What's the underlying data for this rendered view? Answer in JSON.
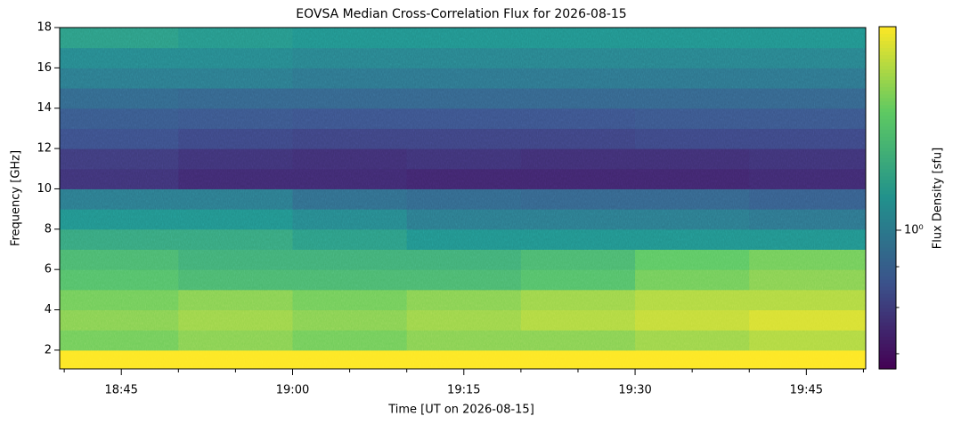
{
  "chart_data": {
    "type": "heatmap",
    "title": "EOVSA Median Cross-Correlation Flux for 2026-08-15",
    "xlabel": "Time [UT on 2026-08-15]",
    "ylabel": "Frequency [GHz]",
    "colorbar_label": "Flux Density [sfu]",
    "colormap": "viridis",
    "clog": true,
    "clim": [
      0.67,
      1.8
    ],
    "cticks": [
      {
        "value": 1,
        "label": "10⁰"
      }
    ],
    "cminorticks": [
      0.7,
      0.8,
      0.9
    ],
    "xlim": [
      1119.6,
      1190.2
    ],
    "xticks": [
      {
        "value": 1125,
        "label": "18:45"
      },
      {
        "value": 1140,
        "label": "19:00"
      },
      {
        "value": 1155,
        "label": "19:15"
      },
      {
        "value": 1170,
        "label": "19:30"
      },
      {
        "value": 1185,
        "label": "19:45"
      }
    ],
    "xminorticks": [
      1120,
      1130,
      1135,
      1145,
      1150,
      1160,
      1165,
      1175,
      1180,
      1190
    ],
    "ylim": [
      1.07,
      18
    ],
    "yticks": [
      2,
      4,
      6,
      8,
      10,
      12,
      14,
      16,
      18
    ],
    "x_edges": [
      1119.6,
      1130,
      1140,
      1150,
      1160,
      1170,
      1180,
      1190.2
    ],
    "y_edges": [
      1.07,
      2,
      3,
      4,
      5,
      6,
      7,
      8,
      9,
      10,
      11,
      12,
      13,
      14,
      15,
      16,
      17,
      18
    ],
    "z": [
      [
        1.8,
        1.8,
        1.8,
        1.8,
        1.8,
        1.8,
        1.8
      ],
      [
        1.45,
        1.5,
        1.45,
        1.5,
        1.5,
        1.55,
        1.6
      ],
      [
        1.5,
        1.55,
        1.5,
        1.55,
        1.6,
        1.65,
        1.7
      ],
      [
        1.45,
        1.5,
        1.45,
        1.5,
        1.55,
        1.6,
        1.6
      ],
      [
        1.35,
        1.3,
        1.3,
        1.3,
        1.35,
        1.45,
        1.5
      ],
      [
        1.3,
        1.25,
        1.25,
        1.25,
        1.3,
        1.4,
        1.45
      ],
      [
        1.2,
        1.2,
        1.15,
        1.1,
        1.1,
        1.1,
        1.1
      ],
      [
        1.1,
        1.1,
        1.05,
        1.0,
        1.0,
        1.0,
        0.98
      ],
      [
        1.0,
        1.0,
        0.95,
        0.93,
        0.92,
        0.92,
        0.9
      ],
      [
        0.78,
        0.76,
        0.76,
        0.75,
        0.75,
        0.75,
        0.76
      ],
      [
        0.8,
        0.78,
        0.77,
        0.78,
        0.77,
        0.77,
        0.78
      ],
      [
        0.85,
        0.83,
        0.82,
        0.82,
        0.82,
        0.83,
        0.83
      ],
      [
        0.88,
        0.87,
        0.86,
        0.86,
        0.86,
        0.87,
        0.87
      ],
      [
        0.93,
        0.92,
        0.92,
        0.92,
        0.92,
        0.92,
        0.92
      ],
      [
        1.0,
        1.0,
        0.98,
        0.98,
        0.98,
        0.98,
        0.98
      ],
      [
        1.05,
        1.05,
        1.03,
        1.03,
        1.03,
        1.03,
        1.03
      ],
      [
        1.15,
        1.12,
        1.1,
        1.1,
        1.1,
        1.1,
        1.1
      ]
    ]
  }
}
